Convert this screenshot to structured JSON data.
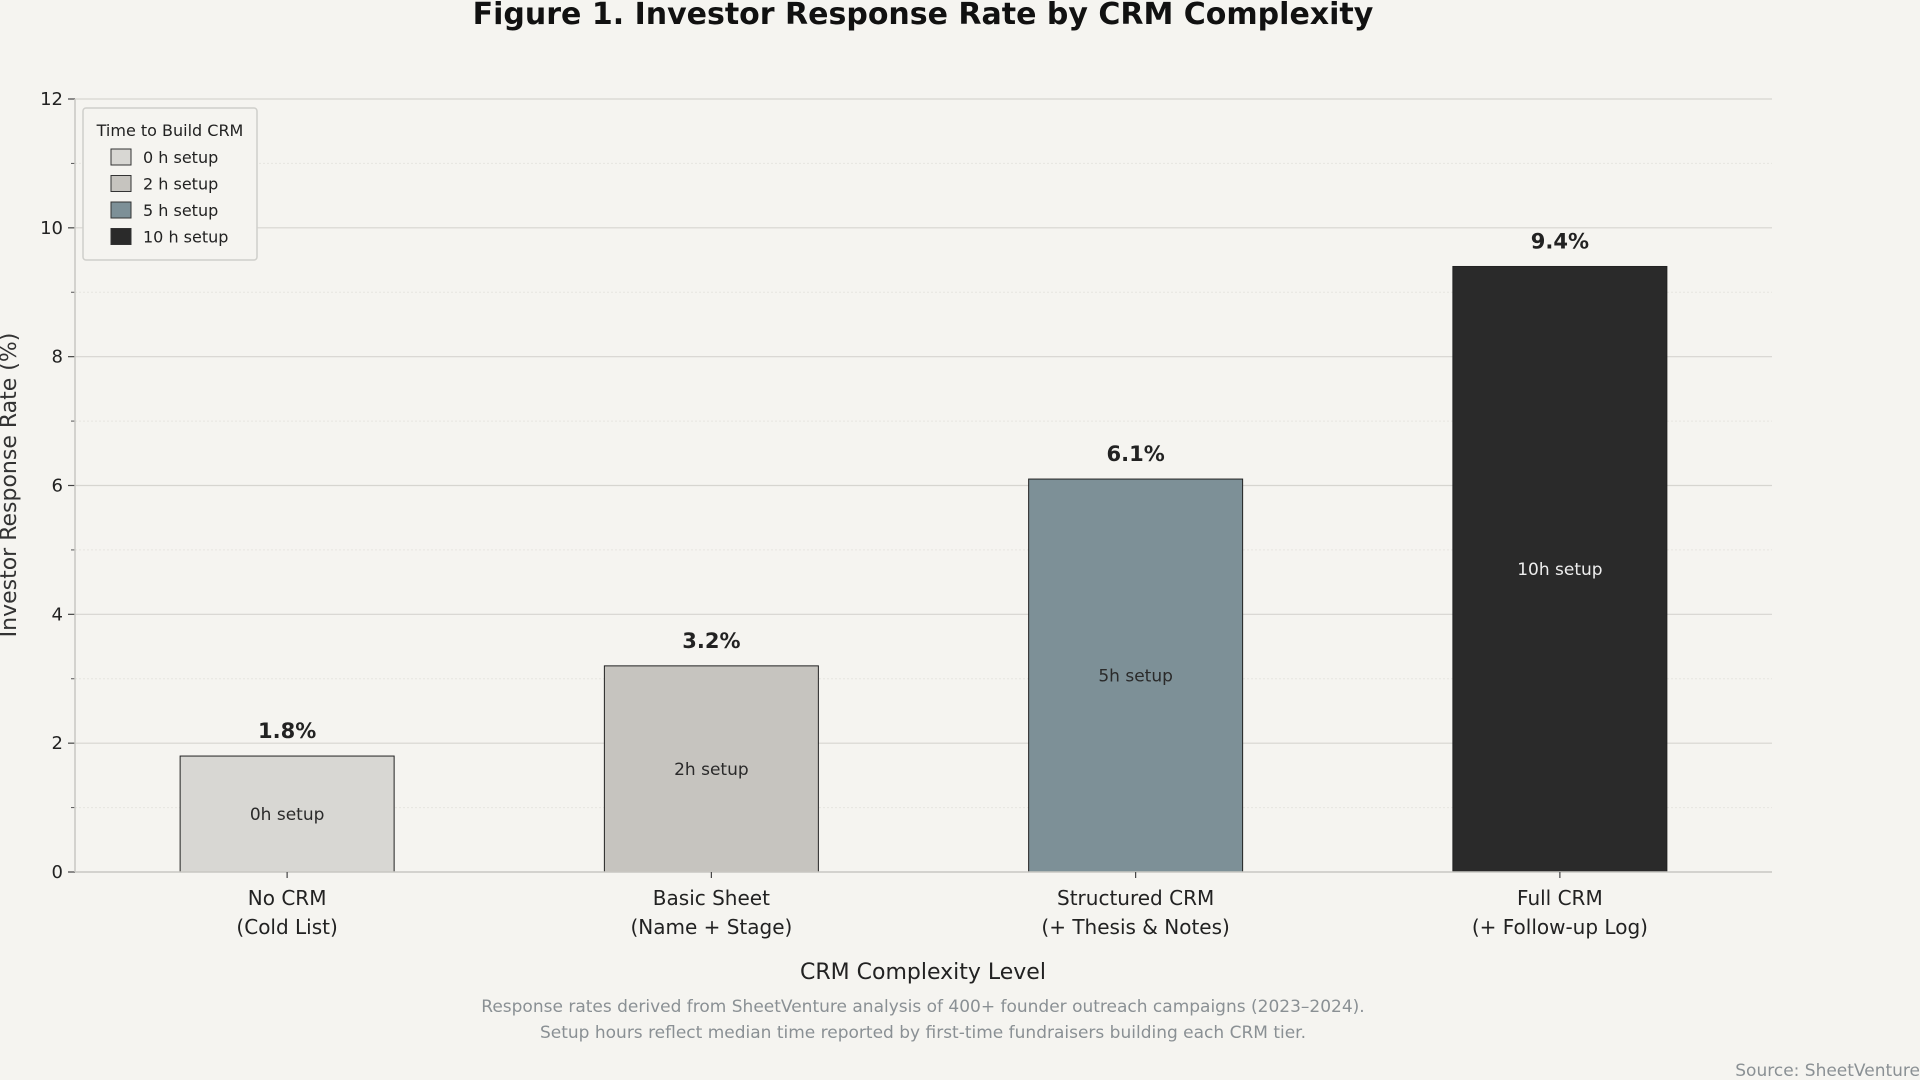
{
  "chart_data": {
    "type": "bar",
    "title": "Figure 1.  Investor Response Rate by CRM Complexity",
    "xlabel": "CRM Complexity Level",
    "ylabel": "Investor Response Rate (%)",
    "ylim": [
      0,
      12
    ],
    "yticks": [
      0,
      2,
      4,
      6,
      8,
      10,
      12
    ],
    "grid": true,
    "categories": [
      [
        "No CRM",
        "(Cold List)"
      ],
      [
        "Basic Sheet",
        "(Name + Stage)"
      ],
      [
        "Structured CRM",
        "(+ Thesis & Notes)"
      ],
      [
        "Full CRM",
        "(+ Follow-up Log)"
      ]
    ],
    "values": [
      1.8,
      3.2,
      6.1,
      9.4
    ],
    "value_labels": [
      "1.8%",
      "3.2%",
      "6.1%",
      "9.4%"
    ],
    "bar_labels": [
      "0h setup",
      "2h setup",
      "5h setup",
      "10h setup"
    ],
    "colors": [
      "#d8d7d3",
      "#c6c4bf",
      "#7d9097",
      "#2a2a2a"
    ],
    "bar_label_colors": [
      "#2a2a2a",
      "#2a2a2a",
      "#2a2a2a",
      "#eeeeee"
    ],
    "legend": {
      "title": "Time to Build CRM",
      "placement": "top-left",
      "entries": [
        "0 h setup",
        "2 h setup",
        "5 h setup",
        "10 h setup"
      ]
    },
    "notes": [
      "Response rates derived from SheetVenture analysis of 400+ founder outreach campaigns (2023–2024).",
      "Setup hours reflect median time reported by first-time fundraisers building each CRM tier."
    ],
    "source": "Source: SheetVenture"
  }
}
